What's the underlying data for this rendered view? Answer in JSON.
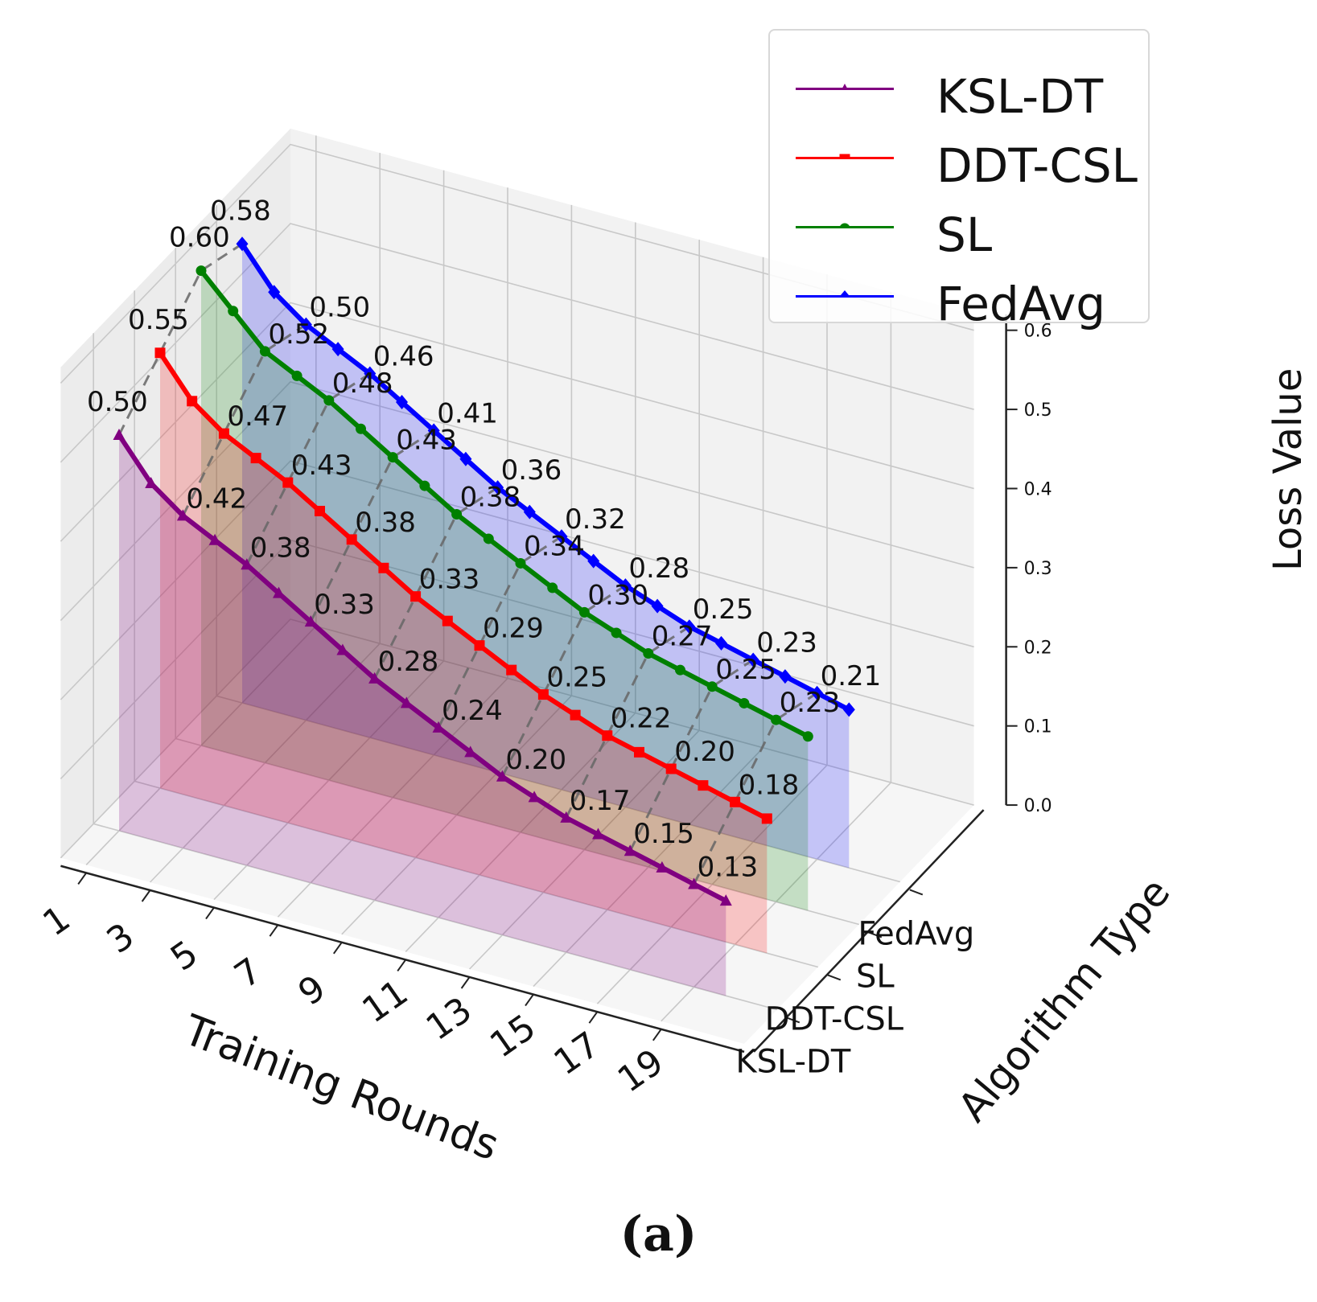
{
  "chart_data": {
    "type": "line",
    "projection": "3d",
    "title": "",
    "xlabel": "Training Rounds",
    "ylabel": "Algorithm Type",
    "zlabel": "Loss Value",
    "x": [
      1,
      2,
      3,
      4,
      5,
      6,
      7,
      8,
      9,
      10,
      11,
      12,
      13,
      14,
      15,
      16,
      17,
      18,
      19,
      20
    ],
    "x_ticks": [
      "1",
      "3",
      "5",
      "7",
      "9",
      "11",
      "13",
      "15",
      "17",
      "19"
    ],
    "y_ticks": [
      "KSL-DT",
      "DDT-CSL",
      "SL",
      "FedAvg"
    ],
    "z_ticks": [
      "0.0",
      "0.1",
      "0.2",
      "0.3",
      "0.4",
      "0.5",
      "0.6"
    ],
    "zlim": [
      0,
      0.6
    ],
    "legend_position": "top-right",
    "series": [
      {
        "name": "KSL-DT",
        "color": "#800080",
        "marker": "triangle",
        "values": [
          0.5,
          0.45,
          0.42,
          0.4,
          0.38,
          0.355,
          0.33,
          0.305,
          0.28,
          0.26,
          0.24,
          0.22,
          0.2,
          0.185,
          0.17,
          0.16,
          0.15,
          0.14,
          0.13,
          0.12
        ],
        "labels": [
          "0.50",
          "0.42",
          "0.38",
          "0.33",
          "0.28",
          "0.24",
          "0.20",
          "0.17",
          "0.15",
          "0.13"
        ]
      },
      {
        "name": "DDT-CSL",
        "color": "#ff0000",
        "marker": "square",
        "values": [
          0.55,
          0.5,
          0.47,
          0.45,
          0.43,
          0.405,
          0.38,
          0.355,
          0.33,
          0.31,
          0.29,
          0.27,
          0.25,
          0.235,
          0.22,
          0.21,
          0.2,
          0.19,
          0.18,
          0.17
        ],
        "labels": [
          "0.55",
          "0.47",
          "0.43",
          "0.38",
          "0.33",
          "0.29",
          "0.25",
          "0.22",
          "0.20",
          "0.18"
        ]
      },
      {
        "name": "SL",
        "color": "#008000",
        "marker": "circle",
        "values": [
          0.6,
          0.56,
          0.52,
          0.5,
          0.48,
          0.455,
          0.43,
          0.405,
          0.38,
          0.36,
          0.34,
          0.32,
          0.3,
          0.285,
          0.27,
          0.26,
          0.25,
          0.24,
          0.23,
          0.22
        ],
        "labels": [
          "0.60",
          "0.52",
          "0.48",
          "0.43",
          "0.38",
          "0.34",
          "0.30",
          "0.27",
          "0.25",
          "0.23"
        ]
      },
      {
        "name": "FedAvg",
        "color": "#0000ff",
        "marker": "diamond",
        "values": [
          0.58,
          0.53,
          0.5,
          0.48,
          0.46,
          0.435,
          0.41,
          0.385,
          0.36,
          0.34,
          0.32,
          0.3,
          0.28,
          0.265,
          0.25,
          0.24,
          0.23,
          0.22,
          0.21,
          0.2
        ],
        "labels": [
          "0.58",
          "0.50",
          "0.46",
          "0.41",
          "0.36",
          "0.32",
          "0.28",
          "0.25",
          "0.23",
          "0.21"
        ]
      }
    ]
  },
  "caption": "(a)"
}
